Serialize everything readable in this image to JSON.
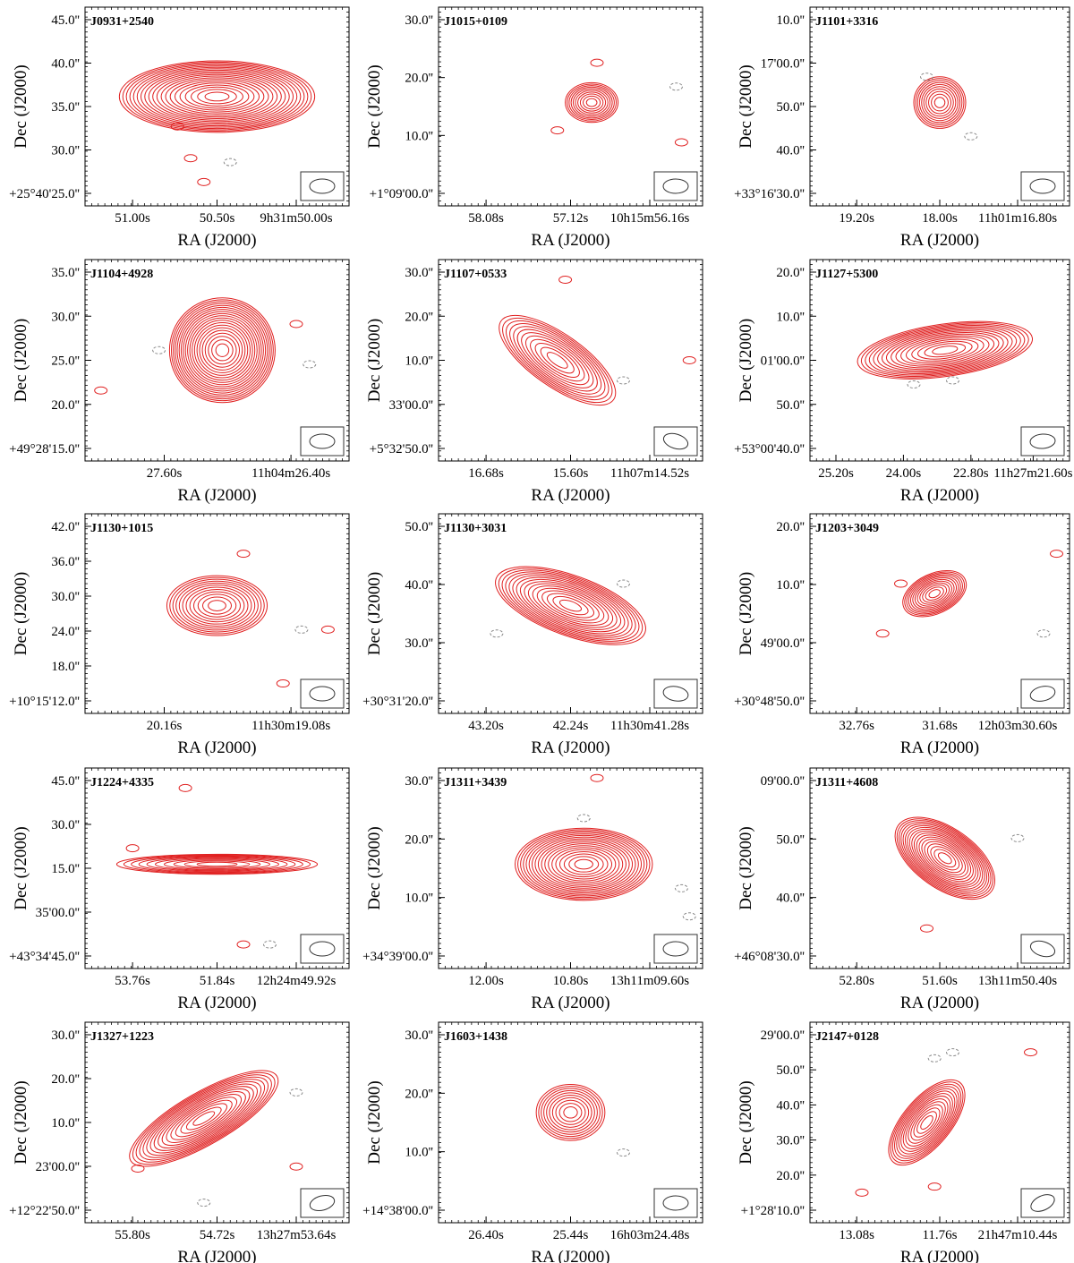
{
  "figure": {
    "type": "radio contour map grid",
    "contour_color": "#e02020",
    "negative_contour_color": "#888888",
    "frame_color": "#000000",
    "panels": [
      {
        "name": "J0931+2540",
        "xlabel": "RA (J2000)",
        "ylabel": "Dec (J2000)",
        "xticks": [
          "51.00s",
          "50.50s",
          "9h31m50.00s"
        ],
        "yticks": [
          "45.0''",
          "40.0''",
          "35.0''",
          "30.0''",
          "+25°40'25.0''"
        ],
        "source_shape": "elongated horizontal, many nested contours"
      },
      {
        "name": "J1015+0109",
        "xlabel": "RA (J2000)",
        "ylabel": "Dec (J2000)",
        "xticks": [
          "58.08s",
          "57.12s",
          "10h15m56.16s"
        ],
        "yticks": [
          "30.0''",
          "20.0''",
          "10.0''",
          "+1°09'00.0''"
        ],
        "source_shape": "compact"
      },
      {
        "name": "J1101+3316",
        "xlabel": "RA (J2000)",
        "ylabel": "Dec (J2000)",
        "xticks": [
          "19.20s",
          "18.00s",
          "11h01m16.80s"
        ],
        "yticks": [
          "10.0''",
          "17'00.0''",
          "50.0''",
          "40.0''",
          "+33°16'30.0''"
        ],
        "source_shape": "compact"
      },
      {
        "name": "J1104+4928",
        "xlabel": "RA (J2000)",
        "ylabel": "Dec (J2000)",
        "xticks": [
          "27.60s",
          "11h04m26.40s"
        ],
        "yticks": [
          "35.0''",
          "30.0''",
          "25.0''",
          "20.0''",
          "+49°28'15.0''"
        ],
        "source_shape": "round, many nested contours"
      },
      {
        "name": "J1107+0533",
        "xlabel": "RA (J2000)",
        "ylabel": "Dec (J2000)",
        "xticks": [
          "16.68s",
          "15.60s",
          "11h07m14.52s"
        ],
        "yticks": [
          "30.0''",
          "20.0''",
          "10.0''",
          "33'00.0''",
          "+5°32'50.0''"
        ],
        "source_shape": "extended diagonal"
      },
      {
        "name": "J1127+5300",
        "xlabel": "RA (J2000)",
        "ylabel": "Dec (J2000)",
        "xticks": [
          "25.20s",
          "24.00s",
          "22.80s",
          "11h27m21.60s"
        ],
        "yticks": [
          "20.0''",
          "10.0''",
          "01'00.0''",
          "50.0''",
          "+53°00'40.0''"
        ],
        "source_shape": "elongated tilted"
      },
      {
        "name": "J1130+1015",
        "xlabel": "RA (J2000)",
        "ylabel": "Dec (J2000)",
        "xticks": [
          "20.16s",
          "11h30m19.08s"
        ],
        "yticks": [
          "42.0''",
          "36.0''",
          "30.0''",
          "24.0''",
          "18.0''",
          "+10°15'12.0''"
        ],
        "source_shape": "round"
      },
      {
        "name": "J1130+3031",
        "xlabel": "RA (J2000)",
        "ylabel": "Dec (J2000)",
        "xticks": [
          "43.20s",
          "42.24s",
          "11h30m41.28s"
        ],
        "yticks": [
          "50.0''",
          "40.0''",
          "30.0''",
          "+30°31'20.0''"
        ],
        "source_shape": "elongated tilted"
      },
      {
        "name": "J1203+3049",
        "xlabel": "RA (J2000)",
        "ylabel": "Dec (J2000)",
        "xticks": [
          "32.76s",
          "31.68s",
          "12h03m30.60s"
        ],
        "yticks": [
          "20.0''",
          "10.0''",
          "49'00.0''",
          "+30°48'50.0''"
        ],
        "source_shape": "compact with extension"
      },
      {
        "name": "J1224+4335",
        "xlabel": "RA (J2000)",
        "ylabel": "Dec (J2000)",
        "xticks": [
          "53.76s",
          "51.84s",
          "12h24m49.92s"
        ],
        "yticks": [
          "45.0''",
          "30.0''",
          "15.0''",
          "35'00.0''",
          "+43°34'45.0''"
        ],
        "source_shape": "horizontal bars"
      },
      {
        "name": "J1311+3439",
        "xlabel": "RA (J2000)",
        "ylabel": "Dec (J2000)",
        "xticks": [
          "12.00s",
          "10.80s",
          "13h11m09.60s"
        ],
        "yticks": [
          "30.0''",
          "20.0''",
          "10.0''",
          "+34°39'00.0''"
        ],
        "source_shape": "extended"
      },
      {
        "name": "J1311+4608",
        "xlabel": "RA (J2000)",
        "ylabel": "Dec (J2000)",
        "xticks": [
          "52.80s",
          "51.60s",
          "13h11m50.40s"
        ],
        "yticks": [
          "09'00.0''",
          "50.0''",
          "40.0''",
          "+46°08'30.0''"
        ],
        "source_shape": "elongated tilted"
      },
      {
        "name": "J1327+1223",
        "xlabel": "RA (J2000)",
        "ylabel": "Dec (J2000)",
        "xticks": [
          "55.80s",
          "54.72s",
          "13h27m53.64s"
        ],
        "yticks": [
          "30.0''",
          "20.0''",
          "10.0''",
          "23'00.0''",
          "+12°22'50.0''"
        ],
        "source_shape": "extended diagonal double"
      },
      {
        "name": "J1603+1438",
        "xlabel": "RA (J2000)",
        "ylabel": "Dec (J2000)",
        "xticks": [
          "26.40s",
          "25.44s",
          "16h03m24.48s"
        ],
        "yticks": [
          "30.0''",
          "20.0''",
          "10.0''",
          "+14°38'00.0''"
        ],
        "source_shape": "compact"
      },
      {
        "name": "J2147+0128",
        "xlabel": "RA (J2000)",
        "ylabel": "Dec (J2000)",
        "xticks": [
          "13.08s",
          "11.76s",
          "21h47m10.44s"
        ],
        "yticks": [
          "29'00.0''",
          "50.0''",
          "40.0''",
          "30.0''",
          "20.0''",
          "+1°28'10.0''"
        ],
        "source_shape": "extended diagonal"
      }
    ]
  }
}
